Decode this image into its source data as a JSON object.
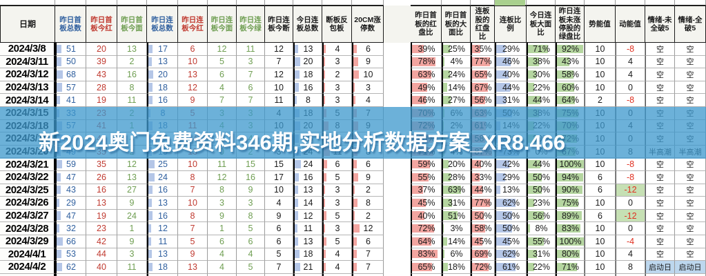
{
  "watermark": "新2024奥门兔费资料346期,实地分析数据方案_XR8.466",
  "accent_colors": {
    "header_blue": "#3b5fa0",
    "header_red": "#c00000",
    "header_green": "#6a9a4a",
    "bar_blue": "#b4c6e7",
    "bar_red": "#f2a5a0",
    "bar_green": "#b5d6a0",
    "negative_red": "#e03020",
    "highlight_green_bg": "#c6e0b4",
    "highlight_blue_bg": "#bdd7ee",
    "band_blue": "#3e98cd"
  },
  "table": {
    "date_header": "日期",
    "columns": [
      {
        "label": "昨日首板总数",
        "text": "blue",
        "bar": "blue"
      },
      {
        "label": "昨日首板今红",
        "text": "red",
        "bar": null
      },
      {
        "label": "昨日首板今面",
        "text": "green",
        "bar": null
      },
      {
        "label": "昨日连板总数",
        "text": "blue",
        "bar": "blue"
      },
      {
        "label": "昨日连板今红",
        "text": "red",
        "bar": null
      },
      {
        "label": "昨日连板今面",
        "text": "green",
        "bar": null
      },
      {
        "label": "昨日连板今绿",
        "text": "green",
        "bar": null
      },
      {
        "label": "昨日连板今断",
        "text": "black",
        "bar": null
      },
      {
        "label": "今日连板总数",
        "text": "black",
        "bar": "blue"
      },
      {
        "label": "断板反包板",
        "text": "black",
        "bar": "red"
      },
      {
        "label": "20CM涨停数",
        "text": "black",
        "bar": "red"
      },
      {
        "label": "",
        "spacer": true
      },
      {
        "label": "昨日首板的红盘比",
        "unit": "%",
        "bar": "red"
      },
      {
        "label": "昨日首板的大面比",
        "unit": "%",
        "bar": "green"
      },
      {
        "label": "连板股的红盘比",
        "unit": "%",
        "bar": "red"
      },
      {
        "label": "连板比例",
        "unit": "%",
        "bar": "blue"
      },
      {
        "label": "今日连板大面比",
        "unit": "%",
        "bar": "green"
      },
      {
        "label": "昨日连板未涨停股的绿盘比",
        "unit": "%",
        "bar": "green"
      },
      {
        "label": "势能值",
        "text": "black",
        "bar": null
      },
      {
        "label": "动能值",
        "text": "black",
        "bar": null,
        "kinetic": true
      },
      {
        "label": "情绪-未全破5",
        "emotion": true
      },
      {
        "label": "情绪-全破5",
        "emotion": true
      }
    ],
    "rows": [
      {
        "date": "2024/3/8",
        "cells": [
          51,
          20,
          13,
          17,
          6,
          12,
          11,
          12,
          13,
          4,
          6,
          "",
          39,
          25,
          35,
          29,
          71,
          92,
          10,
          -8,
          "空",
          "空"
        ]
      },
      {
        "date": "2024/3/11",
        "cells": [
          50,
          39,
          2,
          13,
          10,
          5,
          3,
          7,
          20,
          3,
          9,
          "",
          78,
          4,
          77,
          46,
          38,
          43,
          10,
          4,
          "空",
          "空"
        ]
      },
      {
        "date": "2024/3/12",
        "cells": [
          68,
          43,
          16,
          20,
          13,
          6,
          7,
          12,
          18,
          2,
          10,
          "",
          63,
          24,
          65,
          40,
          30,
          58,
          10,
          4,
          "空",
          "空"
        ]
      },
      {
        "date": "2024/3/13",
        "cells": [
          57,
          28,
          8,
          18,
          12,
          4,
          6,
          10,
          16,
          3,
          3,
          "",
          49,
          14,
          67,
          44,
          22,
          60,
          10,
          0,
          "空",
          "空"
        ]
      },
      {
        "date": "2024/3/14",
        "cells": [
          41,
          19,
          11,
          16,
          9,
          7,
          7,
          11,
          8,
          3,
          4,
          "",
          46,
          27,
          56,
          31,
          44,
          64,
          2,
          -8,
          "空",
          "空"
        ]
      },
      {
        "date": "2024/3/15",
        "cells": [
          33,
          23,
          2,
          8,
          5,
          3,
          3,
          4,
          18,
          5,
          7,
          "",
          70,
          6,
          63,
          50,
          38,
          75,
          10,
          0,
          "空",
          "空"
        ]
      },
      {
        "date": "2024/3/18",
        "cells": [
          57,
          41,
          1,
          18,
          11,
          4,
          3,
          10,
          20,
          8,
          9,
          "",
          72,
          2,
          61,
          14,
          22,
          70,
          10,
          4,
          "空",
          "空"
        ]
      },
      {
        "date": "2024/3/19",
        "cells": [
          66,
          42,
          4,
          17,
          14,
          5,
          4,
          8,
          15,
          6,
          5,
          "",
          68,
          9,
          58,
          33,
          30,
          72,
          10,
          0,
          "空",
          "空"
        ]
      },
      {
        "date": "2024/3/20",
        "cells": [
          49,
          35,
          2,
          15,
          13,
          0,
          2,
          3,
          24,
          11,
          8,
          "",
          71,
          4,
          87,
          73,
          0,
          67,
          10,
          8,
          "半高潮",
          "半高潮"
        ]
      },
      {
        "date": "2024/3/21",
        "cells": [
          59,
          35,
          12,
          25,
          10,
          11,
          15,
          15,
          24,
          6,
          6,
          "",
          59,
          20,
          40,
          42,
          44,
          100,
          10,
          -8,
          "空",
          "空"
        ]
      },
      {
        "date": "2024/3/22",
        "cells": [
          47,
          26,
          13,
          24,
          8,
          12,
          16,
          17,
          16,
          5,
          9,
          "",
          55,
          28,
          33,
          29,
          50,
          94,
          6,
          -8,
          "空",
          "空"
        ]
      },
      {
        "date": "2024/3/25",
        "cells": [
          43,
          16,
          27,
          16,
          7,
          8,
          9,
          10,
          13,
          3,
          2,
          "",
          37,
          63,
          44,
          13,
          50,
          90,
          6,
          -12,
          "空",
          "空"
        ]
      },
      {
        "date": "2024/3/26",
        "cells": [
          29,
          13,
          9,
          13,
          10,
          3,
          3,
          4,
          14,
          3,
          8,
          "",
          45,
          31,
          77,
          62,
          23,
          75,
          10,
          0,
          "空",
          "空"
        ]
      },
      {
        "date": "2024/3/27",
        "cells": [
          47,
          19,
          24,
          16,
          8,
          9,
          8,
          9,
          12,
          5,
          2,
          "",
          40,
          51,
          50,
          50,
          56,
          89,
          6,
          -12,
          "空",
          "空"
        ]
      },
      {
        "date": "2024/3/28",
        "cells": [
          32,
          23,
          1,
          12,
          7,
          1,
          5,
          6,
          11,
          3,
          12,
          "",
          72,
          3,
          58,
          50,
          8,
          83,
          10,
          0,
          "空",
          "空"
        ]
      },
      {
        "date": "2024/3/29",
        "cells": [
          66,
          42,
          9,
          11,
          5,
          6,
          6,
          6,
          13,
          5,
          6,
          "",
          64,
          14,
          45,
          45,
          55,
          100,
          10,
          -4,
          "空",
          "空"
        ]
      },
      {
        "date": "2024/4/1",
        "cells": [
          53,
          44,
          3,
          13,
          9,
          4,
          4,
          5,
          18,
          4,
          7,
          "",
          83,
          6,
          69,
          62,
          31,
          80,
          10,
          4,
          "空",
          "空"
        ]
      },
      {
        "date": "2024/4/2",
        "cells": [
          62,
          40,
          11,
          18,
          13,
          4,
          5,
          7,
          21,
          4,
          7,
          "",
          65,
          18,
          72,
          61,
          22,
          71,
          10,
          8,
          "启动日",
          "启动日"
        ]
      },
      {
        "date": "",
        "cells": [
          "",
          "",
          "",
          "",
          "",
          "",
          "",
          "",
          "",
          "",
          "",
          "",
          "",
          "",
          "",
          "",
          "",
          "",
          "",
          "",
          "",
          ""
        ]
      }
    ]
  }
}
